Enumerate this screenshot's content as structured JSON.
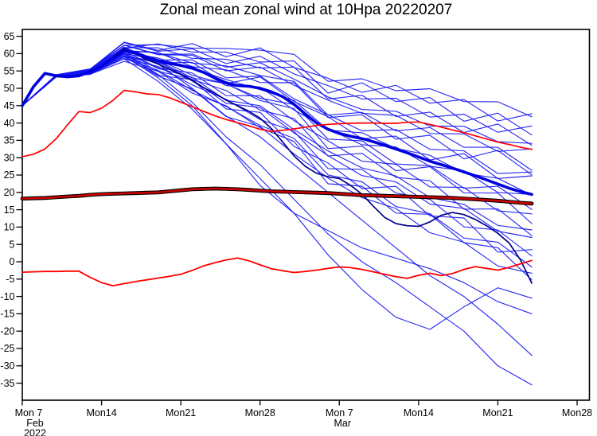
{
  "title": "Zonal mean zonal wind at 10Hpa 20220207",
  "chart_data": {
    "type": "line",
    "title": "Zonal mean zonal wind at 10Hpa 20220207",
    "grid": "off",
    "legend": "none",
    "x_axis": {
      "description": "days from Mon 7 Feb 2022 to Mon 28 Mar 2022, forecast data ends Mar 24",
      "range_days": [
        0,
        50.1
      ],
      "ticks": [
        {
          "day": 0,
          "label": "Mon 7",
          "dx": 8,
          "sub": [
            "Feb",
            "2022"
          ],
          "subdx": 16
        },
        {
          "day": 7,
          "label": "Mon14"
        },
        {
          "day": 14,
          "label": "Mon21"
        },
        {
          "day": 21,
          "label": "Mon28"
        },
        {
          "day": 28,
          "label": "Mon 7",
          "dx": 0,
          "sub": [
            "Mar"
          ],
          "subdx": 4
        },
        {
          "day": 35,
          "label": "Mon14"
        },
        {
          "day": 42,
          "label": "Mon21"
        },
        {
          "day": 49,
          "label": "Mon28"
        }
      ]
    },
    "y_axis": {
      "range": [
        -40,
        67
      ],
      "ticks": [
        65,
        60,
        55,
        50,
        45,
        40,
        35,
        30,
        25,
        20,
        15,
        10,
        5,
        0,
        -5,
        -10,
        -15,
        -20,
        -25,
        -30,
        -35
      ]
    },
    "colors": {
      "member_blue": "#1414f5",
      "mean_blue": "#0000dd",
      "control_navy": "#00008b",
      "climatology_red": "#ff0000",
      "clim_mean_red": "#cc0000",
      "clim_mean_outline": "#000000",
      "axis": "#000000"
    },
    "series": [
      {
        "name": "control-forecast",
        "color": "#00008b",
        "width": 1.7,
        "days": "daily",
        "values": [
          45.0,
          50.5,
          54.5,
          53.8,
          53.4,
          53.8,
          55.0,
          56.6,
          59.0,
          61.5,
          60.0,
          58.2,
          57.0,
          55.5,
          54.0,
          52.2,
          50.2,
          48.6,
          46.6,
          45.0,
          43.4,
          41.4,
          38.4,
          34.5,
          30.5,
          27.5,
          25.5,
          24.5,
          24.0,
          22.0,
          19.5,
          16.0,
          12.8,
          11.0,
          10.4,
          10.2,
          11.5,
          13.4,
          14.2,
          13.6,
          12.2,
          10.4,
          8.2,
          5.4,
          0.5,
          -6.2
        ]
      },
      {
        "name": "ensemble-mean",
        "color": "#0000dd",
        "width": 3.6,
        "days": "daily",
        "values": [
          45.0,
          50.5,
          54.3,
          53.6,
          53.3,
          53.6,
          54.8,
          56.3,
          58.5,
          60.8,
          60.2,
          59.0,
          58.0,
          57.2,
          56.6,
          55.8,
          54.6,
          53.0,
          51.6,
          50.8,
          50.6,
          50.0,
          49.0,
          47.6,
          45.4,
          42.6,
          40.0,
          38.2,
          37.0,
          36.2,
          35.5,
          34.6,
          33.6,
          32.5,
          31.4,
          30.2,
          29.0,
          28.0,
          27.0,
          25.9,
          24.8,
          23.6,
          22.4,
          21.2,
          20.2,
          19.4
        ]
      },
      {
        "name": "climatology-upper",
        "color": "#ff0000",
        "width": 1.7,
        "days": "daily",
        "values": [
          30.3,
          31.0,
          32.5,
          35.5,
          39.5,
          43.3,
          43.0,
          44.3,
          46.5,
          49.4,
          49.0,
          48.4,
          48.2,
          47.3,
          46.0,
          44.7,
          43.4,
          42.1,
          41.0,
          40.1,
          39.2,
          38.2,
          37.6,
          37.9,
          38.3,
          38.8,
          39.3,
          39.6,
          39.8,
          39.9,
          40.0,
          40.0,
          39.9,
          39.9,
          40.2,
          40.3,
          39.6,
          38.8,
          38.0,
          37.2,
          36.3,
          35.4,
          34.5,
          33.8,
          33.0,
          32.4
        ]
      },
      {
        "name": "climatology-lower",
        "color": "#ff0000",
        "width": 1.8,
        "days": "daily",
        "values": [
          -3.0,
          -2.9,
          -2.8,
          -2.8,
          -2.7,
          -2.7,
          -4.5,
          -6.0,
          -6.9,
          -6.3,
          -5.7,
          -5.2,
          -4.7,
          -4.2,
          -3.6,
          -2.5,
          -1.2,
          -0.3,
          0.5,
          1.1,
          0.3,
          -0.9,
          -2.0,
          -2.6,
          -3.1,
          -2.8,
          -2.4,
          -1.9,
          -1.5,
          -1.7,
          -2.2,
          -2.9,
          -3.6,
          -4.3,
          -4.8,
          -3.9,
          -3.3,
          -4.0,
          -3.4,
          -2.2,
          -1.4,
          -1.9,
          -2.4,
          -1.6,
          -0.6,
          0.4
        ]
      },
      {
        "name": "climatological-mean",
        "color": "#cc0000",
        "width": 2.6,
        "days": "daily",
        "outline": {
          "color": "#000000",
          "width": 4.8
        },
        "values": [
          18.2,
          18.3,
          18.4,
          18.6,
          18.8,
          19.0,
          19.3,
          19.5,
          19.6,
          19.7,
          19.8,
          19.9,
          20.0,
          20.3,
          20.6,
          20.9,
          21.0,
          21.1,
          21.0,
          20.9,
          20.7,
          20.5,
          20.3,
          20.2,
          20.1,
          20.0,
          19.9,
          19.8,
          19.6,
          19.4,
          19.2,
          19.1,
          19.0,
          18.9,
          18.8,
          18.7,
          18.6,
          18.5,
          18.4,
          18.2,
          18.0,
          17.8,
          17.6,
          17.3,
          17.0,
          16.8
        ]
      }
    ],
    "members": {
      "description": "ensemble member spaghetti (~50 thin blue lines), values estimated as base + f*spread + wiggle",
      "color": "#1414f5",
      "width": 1.15,
      "days": [
        0,
        3,
        6,
        9,
        12,
        15,
        18,
        21,
        24,
        27,
        30,
        33,
        36,
        39,
        42,
        45
      ],
      "base": [
        45,
        53.6,
        54.8,
        60.8,
        58.0,
        55.8,
        51.6,
        50.0,
        45.4,
        38.2,
        35.5,
        32.5,
        29.0,
        25.9,
        22.4,
        19.4
      ],
      "spread": [
        0,
        0.3,
        0.8,
        2.2,
        4.2,
        6.5,
        9.0,
        11.5,
        13.5,
        15.0,
        16.5,
        18.0,
        19.5,
        21.0,
        22.5,
        24.0
      ],
      "bulk": [
        {
          "f": 1.0,
          "amp": 1.6,
          "ph": 0
        },
        {
          "f": 0.91,
          "amp": 2.4,
          "ph": 1
        },
        {
          "f": 0.83,
          "amp": 3.1,
          "ph": 2
        },
        {
          "f": 0.74,
          "amp": 2.0,
          "ph": 3
        },
        {
          "f": 0.65,
          "amp": 2.8,
          "ph": 4
        },
        {
          "f": 0.57,
          "amp": 1.3,
          "ph": 5
        },
        {
          "f": 0.48,
          "amp": 1.6,
          "ph": 3
        },
        {
          "f": 0.39,
          "amp": 2.4,
          "ph": 0
        },
        {
          "f": 0.3,
          "amp": 3.1,
          "ph": 4
        },
        {
          "f": 0.22,
          "amp": 2.0,
          "ph": 1
        },
        {
          "f": 0.13,
          "amp": 2.8,
          "ph": 5
        },
        {
          "f": 0.04,
          "amp": 1.3,
          "ph": 2
        },
        {
          "f": -0.04,
          "amp": 1.6,
          "ph": 1
        },
        {
          "f": -0.13,
          "amp": 2.4,
          "ph": 4
        },
        {
          "f": -0.22,
          "amp": 3.1,
          "ph": 0
        },
        {
          "f": -0.3,
          "amp": 2.0,
          "ph": 5
        },
        {
          "f": -0.39,
          "amp": 2.8,
          "ph": 2
        },
        {
          "f": -0.48,
          "amp": 1.3,
          "ph": 3
        },
        {
          "f": -0.57,
          "amp": 1.6,
          "ph": 5
        },
        {
          "f": -0.65,
          "amp": 2.4,
          "ph": 2
        },
        {
          "f": -0.74,
          "amp": 3.1,
          "ph": 1
        },
        {
          "f": -0.83,
          "amp": 2.0,
          "ph": 4
        },
        {
          "f": -0.91,
          "amp": 2.8,
          "ph": 0
        },
        {
          "f": -1.0,
          "amp": 1.3,
          "ph": 3
        }
      ],
      "explicit": [
        [
          45,
          53.6,
          54.9,
          60.0,
          54.0,
          46.0,
          36.0,
          28.0,
          18.0,
          8.0,
          0.0,
          -6.0,
          -13.0,
          -20.0,
          -30.0,
          -35.5
        ],
        [
          45,
          53.5,
          54.6,
          59.5,
          53.0,
          45.0,
          34.0,
          24.0,
          14.0,
          2.0,
          -8.0,
          -16.0,
          -19.5,
          -13.0,
          -7.5,
          -10.5
        ],
        [
          45,
          53.7,
          55.0,
          61.5,
          57.0,
          50.0,
          42.0,
          36.0,
          28.0,
          20.0,
          12.0,
          4.0,
          -4.0,
          -10.0,
          -18.0,
          -27.0
        ],
        [
          45,
          53.4,
          54.4,
          58.5,
          52.0,
          44.0,
          34.0,
          22.0,
          14.0,
          9.0,
          4.0,
          1.0,
          -2.0,
          -6.0,
          -11.5,
          -15.0
        ]
      ]
    }
  }
}
